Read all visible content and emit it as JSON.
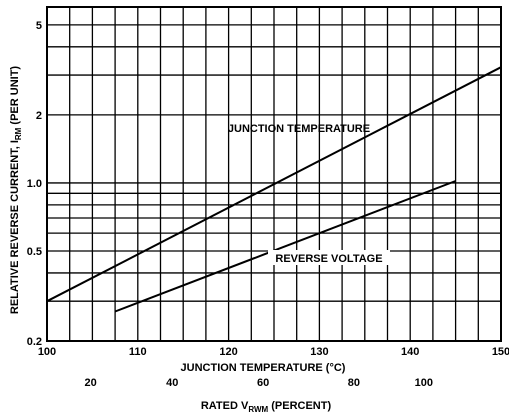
{
  "chart_data": {
    "type": "line",
    "title": "",
    "xlabel": "JUNCTION TEMPERATURE (°C)",
    "x2label_prefix": "RATED V",
    "x2label_sub": "RWM",
    "x2label_suffix": " (PERCENT)",
    "ylabel_prefix": "RELATIVE REVERSE CURRENT, I",
    "ylabel_sub": "RM",
    "ylabel_suffix": " (PER UNIT)",
    "xlim": [
      100,
      150
    ],
    "ylim": [
      0.2,
      6.0
    ],
    "y_scale": "log",
    "x_ticks": [
      100,
      110,
      120,
      130,
      140,
      150
    ],
    "x_tick_labels": [
      "100",
      "110",
      "120",
      "130",
      "140",
      "150"
    ],
    "x2_ticks": [
      20,
      40,
      60,
      80,
      100
    ],
    "x2_tick_labels": [
      "20",
      "40",
      "60",
      "80",
      "100"
    ],
    "x2_to_x": [
      [
        20,
        104.8
      ],
      [
        40,
        113.8
      ],
      [
        60,
        123.8
      ],
      [
        80,
        133.8
      ],
      [
        100,
        141.5
      ]
    ],
    "y_ticks": [
      0.2,
      0.5,
      1.0,
      2,
      5
    ],
    "y_tick_labels": [
      "0.2",
      "0.5",
      "1.0",
      "2",
      "5"
    ],
    "y_minor_grid": [
      0.3,
      0.4,
      0.6,
      0.7,
      0.8,
      0.9,
      3,
      4
    ],
    "x_minor_grid_step": 2.5,
    "grid": true,
    "series": [
      {
        "name": "JUNCTION TEMPERATURE",
        "axis": "x",
        "points": [
          [
            100,
            0.3
          ],
          [
            150,
            3.25
          ]
        ]
      },
      {
        "name": "REVERSE VOLTAGE",
        "axis": "x",
        "points": [
          [
            107.5,
            0.27
          ],
          [
            145,
            1.02
          ]
        ]
      }
    ]
  }
}
